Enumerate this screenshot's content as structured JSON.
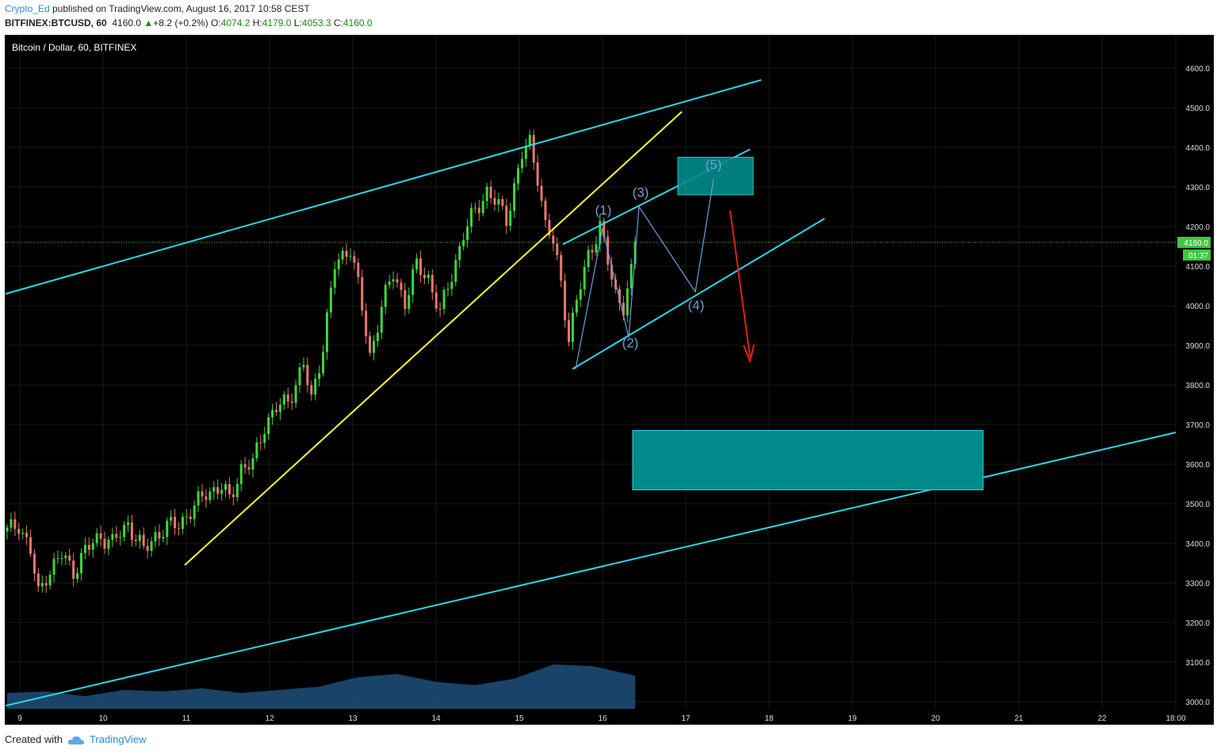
{
  "header": {
    "author": "Crypto_Ed",
    "published_text": " published on TradingView.com, August 16, 2017 10:58 CEST",
    "symbol": "BITFINEX:BTCUSD, 60",
    "last": "4160.0",
    "change": "+8.2 (+0.2%)",
    "o_label": "O:",
    "o_value": "4074.2",
    "h_label": "H:",
    "h_value": "4179.0",
    "l_label": "L:",
    "l_value": "4053.3",
    "c_label": "C:",
    "c_value": "4160.0"
  },
  "footer": {
    "created_with": "Created with",
    "brand": "TradingView"
  },
  "colors": {
    "background": "#000000",
    "up": "#3ed63e",
    "down": "#e8766e",
    "channel": "#27d9e6",
    "trendline": "#ffff33",
    "box_fill": "#008b8b",
    "wave": "#6f9fd6",
    "arrow": "#e0201a",
    "price_tag": "#3ec83e"
  },
  "chart_data": {
    "type": "candlestick",
    "title": "Bitcoin / Dollar, 60, BITFINEX",
    "ylim": [
      2975,
      4650
    ],
    "y_ticks": [
      "4600.0",
      "4500.0",
      "4400.0",
      "4300.0",
      "4200.0",
      "4100.0",
      "4000.0",
      "3900.0",
      "3800.0",
      "3700.0",
      "3600.0",
      "3500.0",
      "3400.0",
      "3300.0",
      "3200.0",
      "3100.0",
      "3000.0"
    ],
    "x_ticks": [
      "9",
      "10",
      "11",
      "12",
      "13",
      "14",
      "15",
      "16",
      "17",
      "18",
      "19",
      "20",
      "21",
      "22",
      "18:00"
    ],
    "last_price_label": "4160.0",
    "countdown_label": "01:37",
    "price_keypoints": [
      [
        0,
        3430
      ],
      [
        3,
        3450
      ],
      [
        6,
        3380
      ],
      [
        8,
        3270
      ],
      [
        10,
        3320
      ],
      [
        14,
        3370
      ],
      [
        17,
        3330
      ],
      [
        20,
        3380
      ],
      [
        24,
        3420
      ],
      [
        27,
        3400
      ],
      [
        31,
        3450
      ],
      [
        35,
        3380
      ],
      [
        38,
        3420
      ],
      [
        41,
        3440
      ],
      [
        44,
        3450
      ],
      [
        48,
        3490
      ],
      [
        51,
        3530
      ],
      [
        55,
        3540
      ],
      [
        57,
        3510
      ],
      [
        60,
        3590
      ],
      [
        63,
        3600
      ],
      [
        66,
        3700
      ],
      [
        69,
        3740
      ],
      [
        72,
        3760
      ],
      [
        76,
        3850
      ],
      [
        78,
        3760
      ],
      [
        81,
        3900
      ],
      [
        84,
        4100
      ],
      [
        88,
        4150
      ],
      [
        90,
        4050
      ],
      [
        93,
        3870
      ],
      [
        96,
        4000
      ],
      [
        99,
        4080
      ],
      [
        102,
        4010
      ],
      [
        105,
        4100
      ],
      [
        108,
        4070
      ],
      [
        111,
        3980
      ],
      [
        114,
        4080
      ],
      [
        117,
        4180
      ],
      [
        120,
        4240
      ],
      [
        123,
        4290
      ],
      [
        126,
        4250
      ],
      [
        128,
        4220
      ],
      [
        132,
        4380
      ],
      [
        134,
        4410
      ],
      [
        136,
        4330
      ],
      [
        138,
        4200
      ],
      [
        140,
        4160
      ],
      [
        142,
        4060
      ],
      [
        144,
        3920
      ],
      [
        147,
        4050
      ],
      [
        149,
        4130
      ],
      [
        152,
        4200
      ],
      [
        154,
        4110
      ],
      [
        156,
        4030
      ],
      [
        158,
        4000
      ],
      [
        160,
        4080
      ],
      [
        161,
        4160
      ]
    ],
    "volume_profile": [
      [
        0,
        20
      ],
      [
        10,
        22
      ],
      [
        20,
        16
      ],
      [
        30,
        24
      ],
      [
        40,
        22
      ],
      [
        50,
        26
      ],
      [
        60,
        20
      ],
      [
        70,
        24
      ],
      [
        80,
        28
      ],
      [
        90,
        40
      ],
      [
        100,
        44
      ],
      [
        110,
        34
      ],
      [
        120,
        30
      ],
      [
        130,
        38
      ],
      [
        140,
        56
      ],
      [
        150,
        54
      ],
      [
        161,
        42
      ]
    ],
    "annotations": {
      "wave_labels": [
        "(1)",
        "(2)",
        "(3)",
        "(4)",
        "(5)"
      ],
      "wave_points": [
        [
          3840,
          "15.66"
        ],
        [
          4195,
          "16.0"
        ],
        [
          3920,
          "16.32"
        ],
        [
          4250,
          "16.45"
        ],
        [
          4035,
          "17.1"
        ],
        [
          4320,
          "17.3"
        ]
      ],
      "target_box_upper": {
        "low": 4280,
        "high": 4375
      },
      "target_box_lower": {
        "low": 3535,
        "high": 3685
      },
      "down_arrow": {
        "from": 4240,
        "to": 3860
      }
    }
  }
}
